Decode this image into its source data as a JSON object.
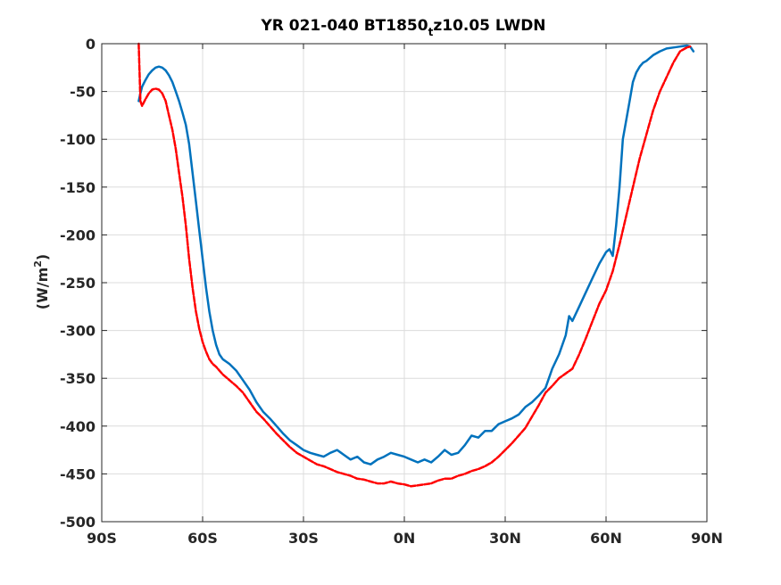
{
  "chart_data": {
    "type": "line",
    "title": {
      "main": "YR 021-040 BT1850",
      "subscript": "t",
      "after": "z10.05 LWDN"
    },
    "ylabel": {
      "main": "(W/m",
      "superscript": "2",
      "after": ")"
    },
    "xlabel": "",
    "xlim": [
      -90,
      90
    ],
    "ylim": [
      -500,
      0
    ],
    "grid": true,
    "x_ticks": [
      -90,
      -60,
      -30,
      0,
      30,
      60,
      90
    ],
    "x_tick_labels": [
      "90S",
      "60S",
      "30S",
      "0N",
      "30N",
      "60N",
      "90N"
    ],
    "y_ticks": [
      -500,
      -450,
      -400,
      -350,
      -300,
      -250,
      -200,
      -150,
      -100,
      -50,
      0
    ],
    "y_tick_labels": [
      "-500",
      "-450",
      "-400",
      "-350",
      "-300",
      "-250",
      "-200",
      "-150",
      "-100",
      "-50",
      "0"
    ],
    "series": [
      {
        "color": "#0072bd",
        "style": "solid",
        "x": [
          -79,
          -78.5,
          -78,
          -77,
          -76,
          -75,
          -74,
          -73,
          -72,
          -71,
          -70,
          -69,
          -68,
          -67,
          -66,
          -65,
          -64,
          -63,
          -62,
          -61,
          -60,
          -59,
          -58,
          -57,
          -56,
          -55,
          -54,
          -52,
          -50,
          -48,
          -46,
          -44,
          -42,
          -40,
          -38,
          -36,
          -34,
          -32,
          -30,
          -28,
          -26,
          -24,
          -22,
          -20,
          -18,
          -16,
          -14,
          -12,
          -10,
          -8,
          -6,
          -4,
          -2,
          0,
          2,
          4,
          6,
          8,
          10,
          12,
          14,
          16,
          18,
          20,
          22,
          24,
          26,
          28,
          30,
          32,
          34,
          36,
          38,
          40,
          42,
          44,
          46,
          48,
          49,
          50,
          52,
          54,
          56,
          58,
          60,
          61,
          62,
          63,
          64,
          65,
          66,
          67,
          68,
          69,
          70,
          71,
          72,
          73,
          74,
          76,
          78,
          80,
          82,
          84,
          85,
          86
        ],
        "y": [
          -60,
          -52,
          -45,
          -38,
          -32,
          -28,
          -25,
          -24,
          -25,
          -28,
          -33,
          -40,
          -50,
          -60,
          -72,
          -85,
          -105,
          -135,
          -165,
          -195,
          -225,
          -255,
          -280,
          -300,
          -315,
          -325,
          -330,
          -335,
          -342,
          -352,
          -362,
          -375,
          -385,
          -392,
          -400,
          -408,
          -415,
          -420,
          -425,
          -428,
          -430,
          -432,
          -428,
          -425,
          -430,
          -435,
          -432,
          -438,
          -440,
          -435,
          -432,
          -428,
          -430,
          -432,
          -435,
          -438,
          -435,
          -438,
          -432,
          -425,
          -430,
          -428,
          -420,
          -410,
          -412,
          -405,
          -405,
          -398,
          -395,
          -392,
          -388,
          -380,
          -375,
          -368,
          -360,
          -340,
          -325,
          -305,
          -285,
          -290,
          -275,
          -260,
          -245,
          -230,
          -218,
          -215,
          -222,
          -190,
          -150,
          -100,
          -80,
          -60,
          -40,
          -30,
          -24,
          -20,
          -18,
          -15,
          -12,
          -8,
          -5,
          -4,
          -3,
          -2,
          -3,
          -8
        ]
      },
      {
        "color": "#ff0000",
        "style": "dashed",
        "x": [
          -79,
          -78.5,
          -78,
          -77,
          -76,
          -75,
          -74,
          -73,
          -72,
          -71,
          -70,
          -69,
          -68,
          -67,
          -66,
          -65,
          -64,
          -63,
          -62,
          -61,
          -60,
          -59,
          -58,
          -57,
          -56,
          -55,
          -54,
          -52,
          -50,
          -48,
          -46,
          -44,
          -42,
          -40,
          -38,
          -36,
          -34,
          -32,
          -30,
          -28,
          -26,
          -24,
          -22,
          -20,
          -18,
          -16,
          -14,
          -12,
          -10,
          -8,
          -6,
          -4,
          -2,
          0,
          2,
          4,
          6,
          8,
          10,
          12,
          14,
          16,
          18,
          20,
          22,
          24,
          26,
          28,
          30,
          32,
          34,
          36,
          38,
          40,
          42,
          44,
          46,
          48,
          50,
          52,
          54,
          56,
          58,
          60,
          62,
          64,
          66,
          68,
          70,
          72,
          74,
          76,
          78,
          80,
          82,
          84,
          85
        ],
        "y": [
          0,
          -60,
          -65,
          -58,
          -52,
          -48,
          -47,
          -48,
          -52,
          -60,
          -75,
          -90,
          -110,
          -135,
          -160,
          -190,
          -225,
          -255,
          -280,
          -298,
          -312,
          -322,
          -330,
          -335,
          -338,
          -342,
          -346,
          -352,
          -358,
          -365,
          -375,
          -385,
          -392,
          -400,
          -408,
          -415,
          -422,
          -428,
          -432,
          -436,
          -440,
          -442,
          -445,
          -448,
          -450,
          -452,
          -455,
          -456,
          -458,
          -460,
          -460,
          -458,
          -460,
          -461,
          -463,
          -462,
          -461,
          -460,
          -457,
          -455,
          -455,
          -452,
          -450,
          -447,
          -445,
          -442,
          -438,
          -432,
          -425,
          -418,
          -410,
          -402,
          -390,
          -378,
          -365,
          -358,
          -350,
          -345,
          -340,
          -325,
          -308,
          -290,
          -272,
          -258,
          -238,
          -210,
          -180,
          -150,
          -120,
          -95,
          -70,
          -50,
          -35,
          -20,
          -8,
          -4,
          -3
        ]
      }
    ]
  }
}
